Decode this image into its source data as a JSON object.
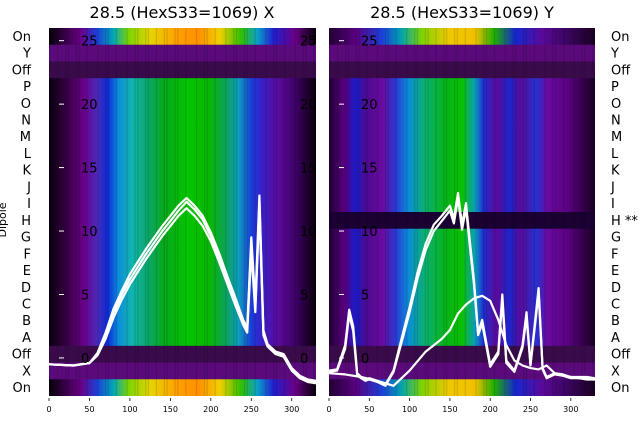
{
  "chart_data": [
    {
      "type": "heatmap",
      "title": "28.5 (HexS33=1069) X",
      "ylabel": "Dipole",
      "rows": [
        "On",
        "Y",
        "Off",
        "P",
        "O",
        "N",
        "M",
        "L",
        "K",
        "J",
        "I",
        "H",
        "G",
        "F",
        "E",
        "D",
        "C",
        "B",
        "A",
        "Off",
        "X",
        "On"
      ],
      "row_suffix": {},
      "xticks": [
        0,
        50,
        100,
        150,
        200,
        250,
        300
      ],
      "xlim": [
        0,
        330
      ],
      "overlay_yticks": [
        0,
        5,
        10,
        15,
        20,
        25
      ],
      "overlay_ylim": [
        -3,
        26
      ],
      "colormap": "nipy_spectral",
      "overlay_series": [
        {
          "color": "#ffffff",
          "x": [
            0,
            30,
            50,
            60,
            70,
            80,
            90,
            100,
            110,
            120,
            130,
            140,
            150,
            160,
            170,
            180,
            190,
            200,
            210,
            220,
            230,
            240,
            245,
            250,
            255,
            260,
            265,
            270,
            280,
            290,
            300,
            310,
            320,
            330
          ],
          "y": [
            -0.5,
            -0.6,
            -0.4,
            0.3,
            1.8,
            3.6,
            5,
            6.2,
            7.2,
            8.2,
            9.1,
            10,
            10.8,
            11.6,
            12.3,
            11.7,
            10.9,
            9.6,
            8,
            6.2,
            4.5,
            2.8,
            2.2,
            9,
            4,
            12.3,
            2,
            1,
            0.4,
            0.2,
            -0.9,
            -1.5,
            -1.8,
            -1.9
          ]
        },
        {
          "color": "#ffffff",
          "x": [
            0,
            30,
            50,
            60,
            70,
            80,
            90,
            100,
            110,
            120,
            130,
            140,
            150,
            160,
            170,
            180,
            190,
            200,
            210,
            220,
            230,
            240,
            245,
            250,
            255,
            260,
            265,
            270,
            280,
            290,
            300,
            310,
            320,
            330
          ],
          "y": [
            -0.5,
            -0.6,
            -0.4,
            0.2,
            1.5,
            3.2,
            4.6,
            5.8,
            6.8,
            7.8,
            8.7,
            9.6,
            10.4,
            11.2,
            11.8,
            11.2,
            10.4,
            9.2,
            7.6,
            5.9,
            4.2,
            2.6,
            2,
            8.4,
            3.6,
            11.8,
            1.8,
            0.9,
            0.3,
            0.1,
            -1,
            -1.6,
            -1.9,
            -2
          ]
        },
        {
          "color": "#ffffff",
          "x": [
            0,
            30,
            50,
            60,
            70,
            80,
            90,
            100,
            110,
            120,
            130,
            140,
            150,
            160,
            170,
            180,
            190,
            200,
            210,
            220,
            230,
            240,
            245,
            250,
            255,
            260,
            265,
            270,
            280,
            290,
            300,
            310,
            320,
            330
          ],
          "y": [
            -0.5,
            -0.6,
            -0.4,
            0.4,
            2,
            3.9,
            5.3,
            6.6,
            7.6,
            8.6,
            9.5,
            10.4,
            11.2,
            12,
            12.6,
            12,
            11.2,
            9.9,
            8.3,
            6.5,
            4.8,
            3,
            2.4,
            9.5,
            4.3,
            12.8,
            2.2,
            1.1,
            0.5,
            0.3,
            -0.8,
            -1.4,
            -1.7,
            -1.8
          ]
        }
      ]
    },
    {
      "type": "heatmap",
      "title": "28.5 (HexS33=1069) Y",
      "rows": [
        "On",
        "Y",
        "Off",
        "P",
        "O",
        "N",
        "M",
        "L",
        "K",
        "J",
        "I",
        "H",
        "G",
        "F",
        "E",
        "D",
        "C",
        "B",
        "A",
        "Off",
        "X",
        "On"
      ],
      "row_suffix": {
        "H": "**"
      },
      "xticks": [
        0,
        50,
        100,
        150,
        200,
        250,
        300
      ],
      "xlim": [
        0,
        330
      ],
      "overlay_yticks": [
        0,
        5,
        10,
        15,
        20,
        25
      ],
      "overlay_ylim": [
        -3,
        26
      ],
      "colormap": "nipy_spectral",
      "overlay_series": [
        {
          "color": "#ffffff",
          "x": [
            0,
            10,
            20,
            25,
            30,
            35,
            40,
            45,
            50,
            60,
            70,
            80,
            90,
            100,
            110,
            120,
            130,
            140,
            150,
            155,
            160,
            165,
            170,
            175,
            180,
            185,
            190,
            200,
            210,
            215,
            220,
            230,
            240,
            245,
            250,
            260,
            265,
            270,
            280,
            290,
            300,
            310,
            320,
            330
          ],
          "y": [
            -1,
            -0.9,
            1,
            3.8,
            2.5,
            -1.2,
            -1.5,
            -1.7,
            -1.6,
            -1.8,
            -2.1,
            -1,
            1.5,
            4,
            6.8,
            9,
            10.5,
            11.2,
            12,
            11,
            13,
            10.5,
            12.2,
            9,
            6,
            2,
            3,
            -0.5,
            0.5,
            5,
            -0.2,
            -1,
            1,
            3.6,
            -0.5,
            5.5,
            -0.8,
            -1.5,
            -1.2,
            -1.3,
            -1.5,
            -1.5,
            -1.5,
            -1.6
          ]
        },
        {
          "color": "#ffffff",
          "x": [
            0,
            10,
            20,
            25,
            30,
            35,
            40,
            45,
            50,
            60,
            70,
            80,
            90,
            100,
            110,
            120,
            130,
            140,
            150,
            155,
            160,
            165,
            170,
            175,
            180,
            185,
            190,
            200,
            210,
            215,
            220,
            230,
            240,
            245,
            250,
            260,
            265,
            270,
            280,
            290,
            300,
            310,
            320,
            330
          ],
          "y": [
            -1.1,
            -1,
            0.7,
            3.4,
            2.1,
            -1.4,
            -1.6,
            -1.8,
            -1.7,
            -1.9,
            -2.2,
            -1.1,
            1.2,
            3.6,
            6.3,
            8.5,
            10,
            10.8,
            11.6,
            10.6,
            12.6,
            10.1,
            11.8,
            8.6,
            5.7,
            1.8,
            2.7,
            -0.7,
            0.3,
            4.6,
            -0.4,
            -1.1,
            0.8,
            3.2,
            -0.6,
            5.1,
            -0.9,
            -1.6,
            -1.3,
            -1.4,
            -1.6,
            -1.6,
            -1.6,
            -1.7
          ]
        },
        {
          "color": "#ffffff",
          "x": [
            0,
            20,
            40,
            60,
            80,
            100,
            120,
            140,
            150,
            160,
            170,
            180,
            190,
            200,
            210,
            220,
            230,
            240,
            250,
            260,
            270,
            280,
            290,
            300,
            310,
            320,
            330
          ],
          "y": [
            -1.2,
            -1.3,
            -1.5,
            -1.8,
            -2.2,
            -1,
            0.5,
            1.5,
            2.2,
            3.5,
            4.2,
            4.7,
            4.9,
            4.5,
            3,
            1,
            -0.2,
            -0.6,
            -0.8,
            -0.9,
            -0.6,
            -1.2,
            -1.4,
            -1.5,
            -1.6,
            -1.7,
            -1.7
          ]
        }
      ]
    }
  ]
}
